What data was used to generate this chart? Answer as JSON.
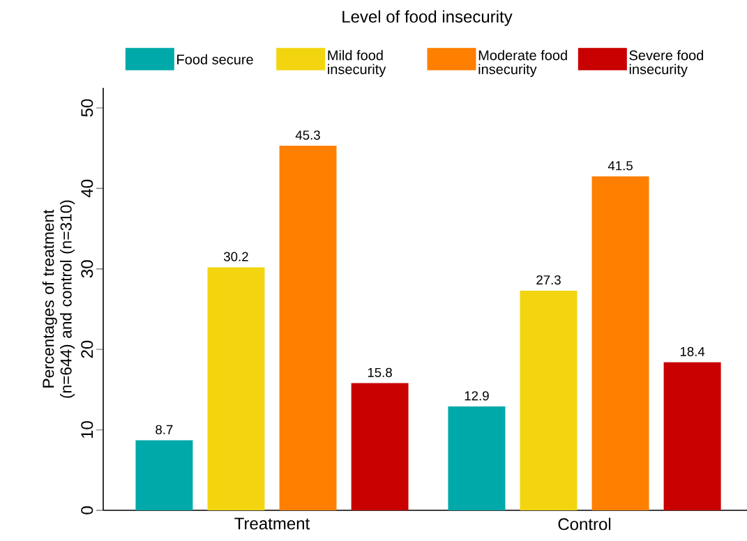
{
  "chart_data": {
    "type": "bar",
    "legend_title": "Level of food insecurity",
    "ylabel": "Percentages of treatment (n=644) and control (n=310)",
    "categories": [
      "Treatment",
      "Control"
    ],
    "series": [
      {
        "name": "Food secure",
        "color": "#00a9a9",
        "values": [
          8.7,
          12.9
        ]
      },
      {
        "name": "Mild food insecurity",
        "color": "#f2d50f",
        "values": [
          30.2,
          27.3
        ]
      },
      {
        "name": "Moderate food insecurity",
        "color": "#ff7f00",
        "values": [
          45.3,
          41.5
        ]
      },
      {
        "name": "Severe food insecurity",
        "color": "#c80000",
        "values": [
          15.8,
          18.4
        ]
      }
    ],
    "ylim": [
      0,
      52.5
    ],
    "yticks": [
      0,
      10,
      20,
      30,
      40,
      50
    ],
    "data_labels": true,
    "grid": false,
    "legend": "top"
  }
}
